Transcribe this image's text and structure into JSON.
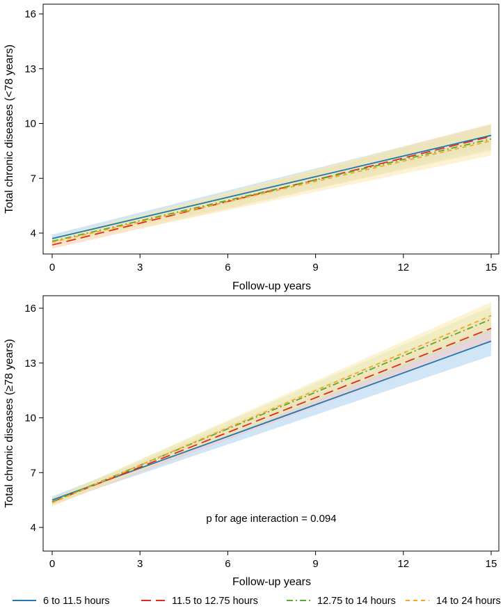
{
  "chart_data": [
    {
      "type": "line",
      "xlabel": "Follow-up years",
      "ylabel": "Total chronic diseases (<78 years)",
      "xlim": [
        0,
        15
      ],
      "ylim": [
        3,
        17
      ],
      "xticks": [
        0,
        3,
        6,
        9,
        12,
        15
      ],
      "yticks": [
        4,
        7,
        10,
        13,
        16
      ],
      "grid": false,
      "annotation": "",
      "series": [
        {
          "name": "6 to 11.5 hours",
          "color": "#1f77b4",
          "dash": "solid",
          "band": "#a9d2ee",
          "x": [
            0,
            15
          ],
          "y": [
            3.7,
            9.35
          ],
          "lo": [
            3.5,
            8.75
          ],
          "hi": [
            3.92,
            9.95
          ]
        },
        {
          "name": "11.5 to 12.75 hours",
          "color": "#e3291f",
          "dash": "long-dash",
          "band": "#f7c9c2",
          "x": [
            0,
            15
          ],
          "y": [
            3.35,
            9.3
          ],
          "lo": [
            3.15,
            8.6
          ],
          "hi": [
            3.55,
            9.95
          ]
        },
        {
          "name": "12.75 to 14 hours",
          "color": "#59a82f",
          "dash": "dash-dot",
          "band": "#cfe6b8",
          "x": [
            0,
            15
          ],
          "y": [
            3.55,
            9.15
          ],
          "lo": [
            3.35,
            8.5
          ],
          "hi": [
            3.75,
            9.85
          ]
        },
        {
          "name": "14 to 24 hours",
          "color": "#f5a623",
          "dash": "short-dash",
          "band": "#fbe9b0",
          "x": [
            0,
            15
          ],
          "y": [
            3.5,
            9.05
          ],
          "lo": [
            3.25,
            8.25
          ],
          "hi": [
            3.75,
            10.0
          ]
        }
      ]
    },
    {
      "type": "line",
      "xlabel": "Follow-up years",
      "ylabel": "Total chronic diseases (≥78 years)",
      "xlim": [
        0,
        15
      ],
      "ylim": [
        3,
        17
      ],
      "xticks": [
        0,
        3,
        6,
        9,
        12,
        15
      ],
      "yticks": [
        4,
        7,
        10,
        13,
        16
      ],
      "grid": false,
      "annotation": "p for age interaction = 0.094",
      "series": [
        {
          "name": "6 to 11.5 hours",
          "color": "#1f77b4",
          "dash": "solid",
          "band": "#a9d2ee",
          "x": [
            0,
            15
          ],
          "y": [
            5.5,
            14.2
          ],
          "lo": [
            5.3,
            13.4
          ],
          "hi": [
            5.7,
            14.95
          ]
        },
        {
          "name": "11.5 to 12.75 hours",
          "color": "#e3291f",
          "dash": "long-dash",
          "band": "#f7c9c2",
          "x": [
            0,
            15
          ],
          "y": [
            5.4,
            14.9
          ],
          "lo": [
            5.2,
            14.2
          ],
          "hi": [
            5.6,
            15.6
          ]
        },
        {
          "name": "12.75 to 14 hours",
          "color": "#59a82f",
          "dash": "dash-dot",
          "band": "#cfe6b8",
          "x": [
            0,
            15
          ],
          "y": [
            5.4,
            15.4
          ],
          "lo": [
            5.2,
            14.7
          ],
          "hi": [
            5.6,
            16.1
          ]
        },
        {
          "name": "14 to 24 hours",
          "color": "#f5a623",
          "dash": "short-dash",
          "band": "#fbe9b0",
          "x": [
            0,
            15
          ],
          "y": [
            5.35,
            15.6
          ],
          "lo": [
            5.15,
            14.85
          ],
          "hi": [
            5.55,
            16.35
          ]
        }
      ]
    }
  ],
  "legend": {
    "placement": "bottom",
    "items": [
      {
        "label": "6 to 11.5 hours",
        "color": "#1f77b4",
        "dash": "solid"
      },
      {
        "label": "11.5 to 12.75 hours",
        "color": "#e3291f",
        "dash": "long-dash"
      },
      {
        "label": "12.75 to 14 hours",
        "color": "#59a82f",
        "dash": "dash-dot"
      },
      {
        "label": "14 to 24 hours",
        "color": "#f5a623",
        "dash": "short-dash"
      }
    ]
  }
}
